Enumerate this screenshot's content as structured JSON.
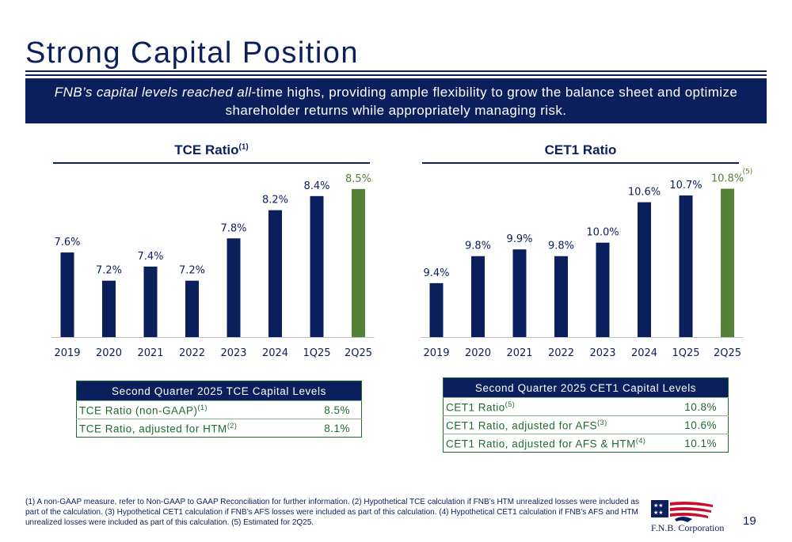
{
  "title": "Strong Capital Position",
  "banner": {
    "italic": "FNB’s capital levels reached all",
    "rest": "-time highs, providing ample flexibility to grow the balance sheet and optimize shareholder returns while appropriately managing risk."
  },
  "colors": {
    "navy": "#0a1f5c",
    "green": "#538135"
  },
  "chart_data": [
    {
      "type": "bar",
      "title": "TCE Ratio",
      "title_sup": "(1)",
      "categories": [
        "2019",
        "2020",
        "2021",
        "2022",
        "2023",
        "2024",
        "1Q25",
        "2Q25"
      ],
      "values": [
        7.6,
        7.2,
        7.4,
        7.2,
        7.8,
        8.2,
        8.4,
        8.5
      ],
      "labels": [
        "7.6%",
        "7.2%",
        "7.4%",
        "7.2%",
        "7.8%",
        "8.2%",
        "8.4%",
        "8.5%"
      ],
      "highlight_last": true,
      "ylim": [
        6.4,
        8.6
      ],
      "grid": false
    },
    {
      "type": "bar",
      "title": "CET1 Ratio",
      "title_sup": "",
      "categories": [
        "2019",
        "2020",
        "2021",
        "2022",
        "2023",
        "2024",
        "1Q25",
        "2Q25"
      ],
      "values": [
        9.4,
        9.8,
        9.9,
        9.8,
        10.0,
        10.6,
        10.7,
        10.8
      ],
      "labels": [
        "9.4%",
        "9.8%",
        "9.9%",
        "9.8%",
        "10.0%",
        "10.6%",
        "10.7%",
        "10.8%"
      ],
      "last_label_sup": "(5)",
      "highlight_last": true,
      "ylim": [
        8.6,
        10.9
      ],
      "grid": false
    }
  ],
  "tce_table": {
    "header": "Second Quarter 2025 TCE Capital Levels",
    "rows": [
      {
        "label": "TCE Ratio (non-GAAP)",
        "sup": "(1)",
        "value": "8.5%"
      },
      {
        "label": "TCE Ratio, adjusted for HTM",
        "sup": "(2)",
        "value": "8.1%"
      }
    ]
  },
  "cet1_table": {
    "header": "Second Quarter 2025 CET1 Capital Levels",
    "rows": [
      {
        "label": "CET1 Ratio",
        "sup": "(5)",
        "value": "10.8%"
      },
      {
        "label": "CET1 Ratio, adjusted for AFS",
        "sup": "(3)",
        "value": "10.6%"
      },
      {
        "label": "CET1 Ratio, adjusted for AFS & HTM",
        "sup": "(4)",
        "value": "10.1%"
      }
    ]
  },
  "footnote": "(1) A non-GAAP measure, refer to Non-GAAP to GAAP Reconciliation for further information. (2) Hypothetical TCE calculation if FNB’s HTM unrealized losses were included as part of the calculation. (3) Hypothetical CET1 calculation if FNB’s AFS losses were included as part of this calculation. (4) Hypothetical CET1 calculation if FNB’s AFS and HTM unrealized losses were included as part of this calculation. (5) Estimated for 2Q25.",
  "logo": {
    "text": "F.N.B. Corporation",
    "icon": "fnb-logo-icon"
  },
  "page_number": "19"
}
